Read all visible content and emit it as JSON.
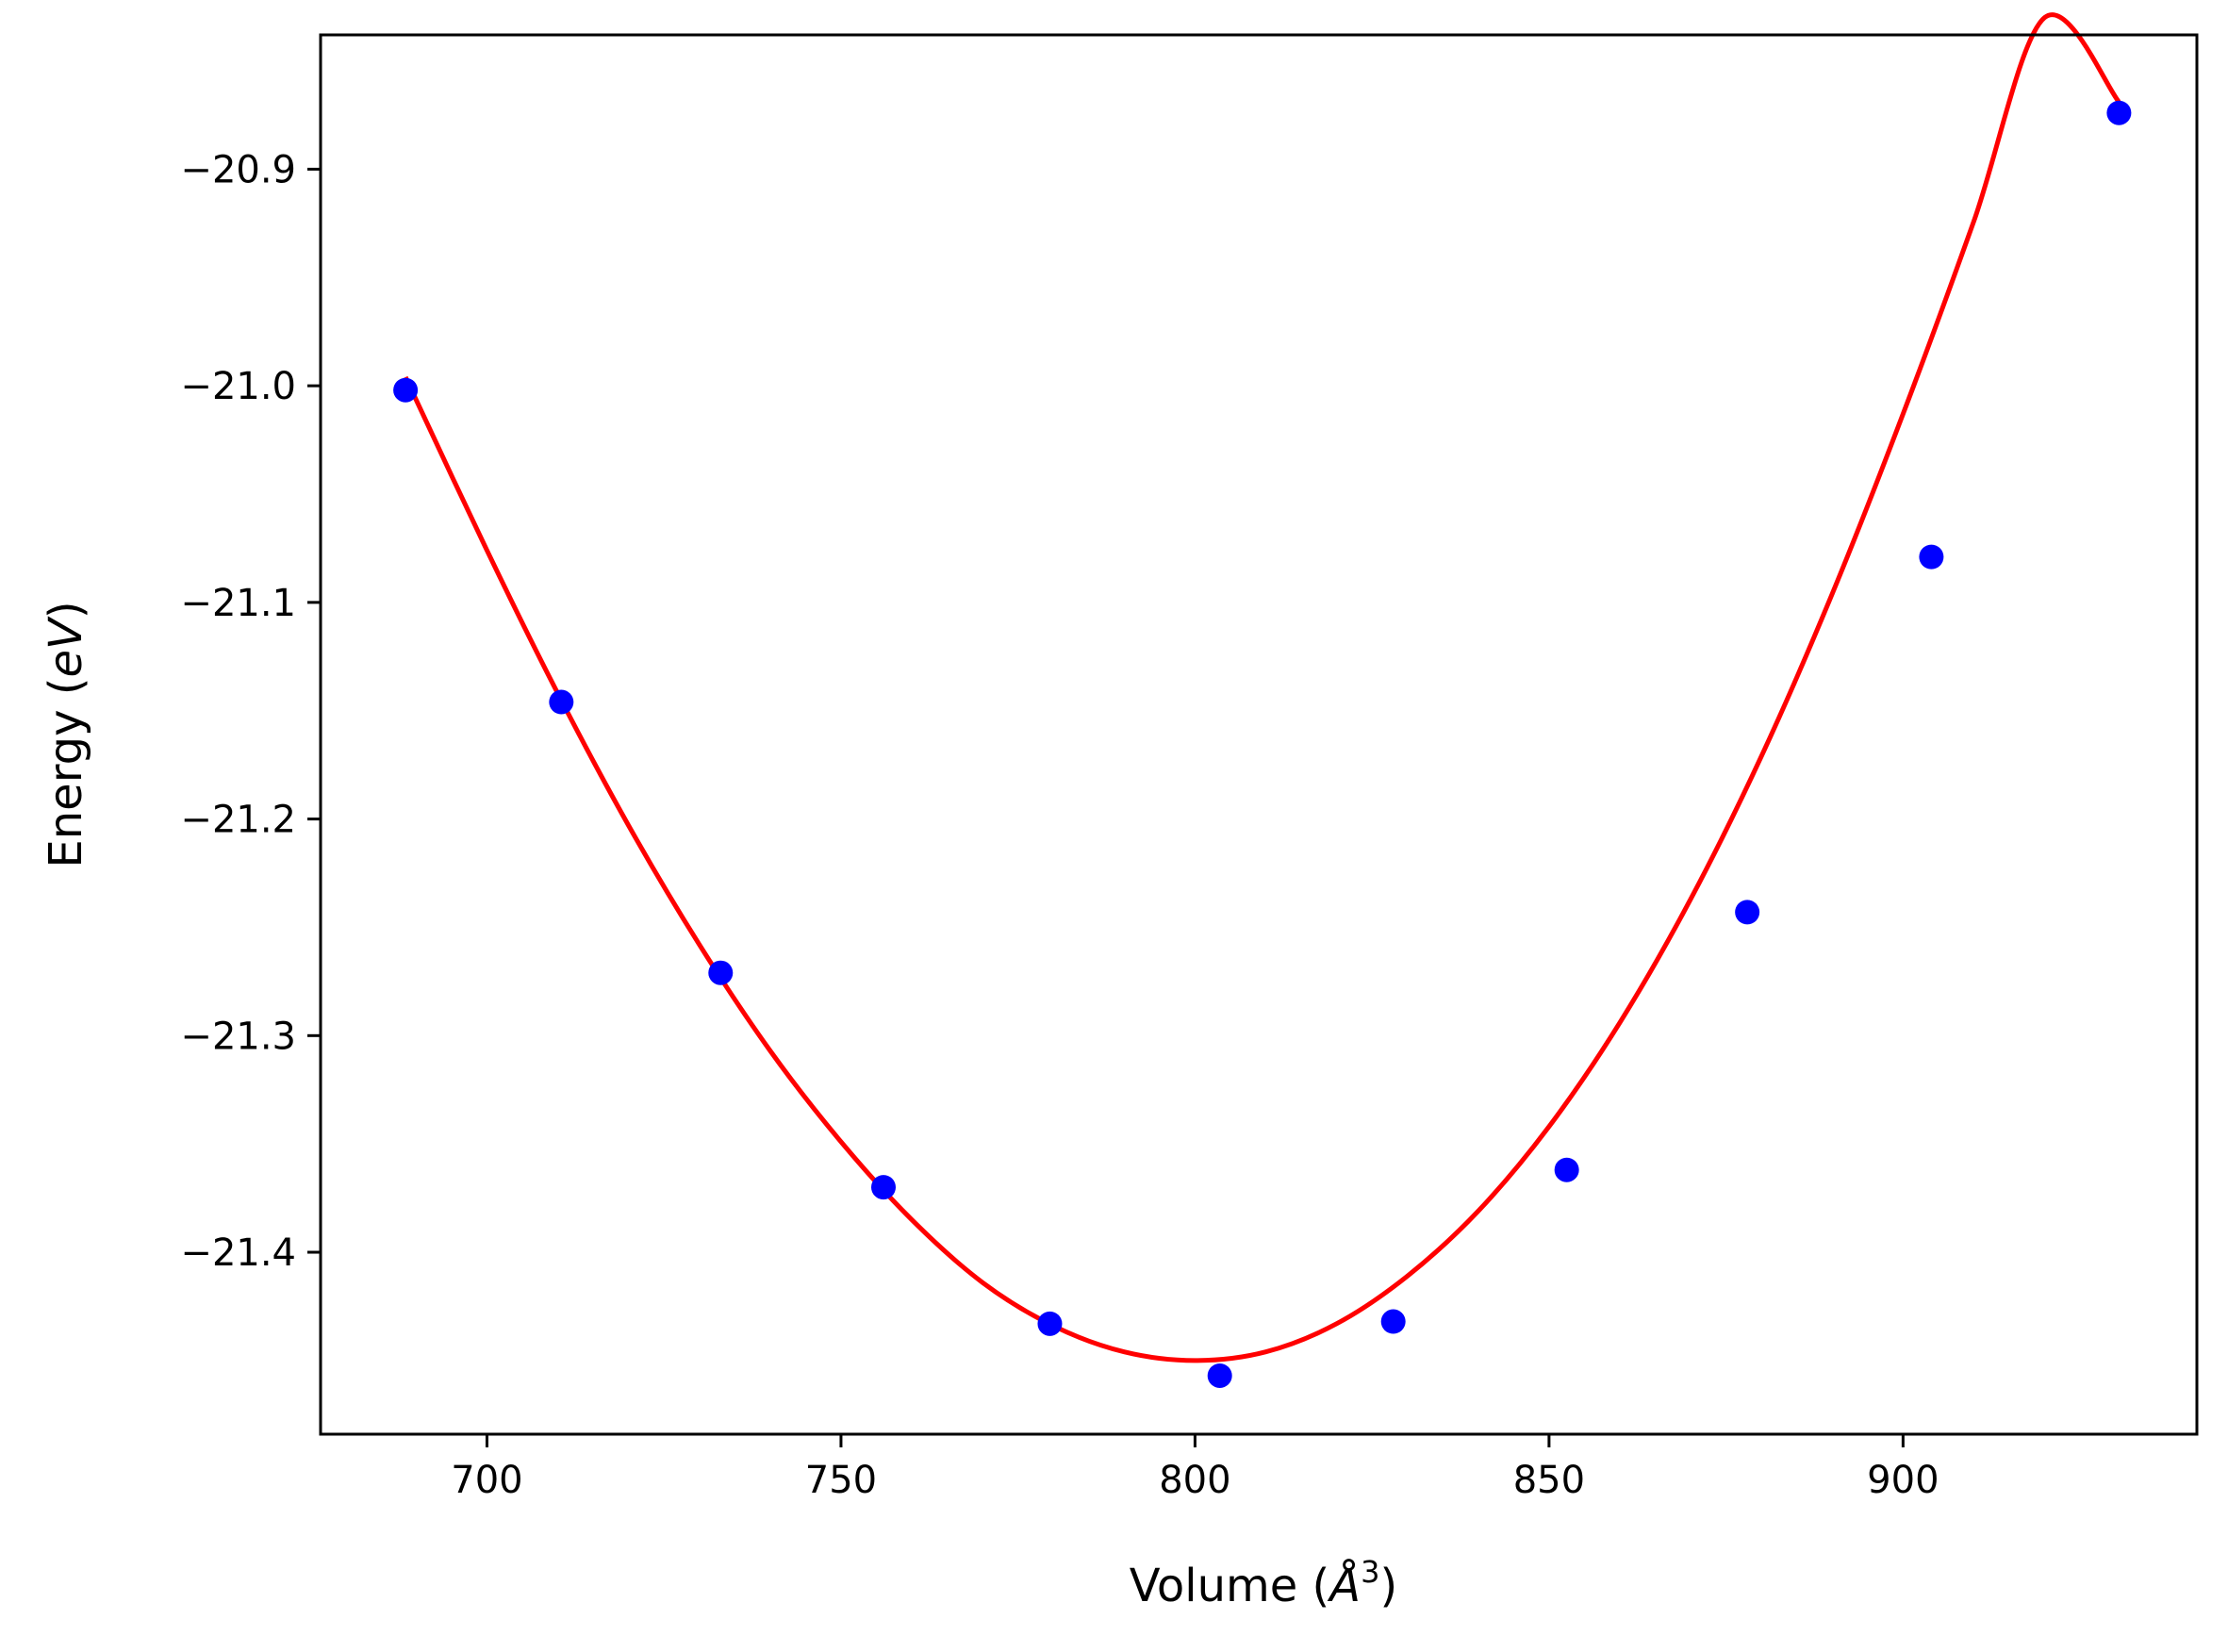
{
  "chart_data": {
    "type": "scatter",
    "title": "",
    "xlabel": "Volume (",
    "xlabel_symbol": "Å",
    "xlabel_sup": "3",
    "xlabel_close": ")",
    "ylabel": "Energy (",
    "ylabel_symbol": "eV",
    "ylabel_close": ")",
    "xlim": [
      676.5,
      941.5
    ],
    "ylim": [
      -21.484,
      -20.838
    ],
    "x_ticks": [
      700,
      750,
      800,
      850,
      900
    ],
    "x_tick_labels": [
      "700",
      "750",
      "800",
      "850",
      "900"
    ],
    "y_ticks": [
      -20.9,
      -21.0,
      -21.1,
      -21.2,
      -21.3,
      -21.4
    ],
    "y_tick_labels": [
      "−20.9",
      "−21.0",
      "−21.1",
      "−21.2",
      "−21.3",
      "−21.4"
    ],
    "grid": false,
    "legend": "none",
    "series": [
      {
        "kind": "points",
        "color": "#0000ff",
        "x": [
          688.5,
          710.5,
          733.0,
          756.0,
          779.5,
          803.5,
          828.0,
          852.5,
          878.0,
          904.0,
          930.5
        ],
        "y": [
          -21.002,
          -21.146,
          -21.271,
          -21.37,
          -21.433,
          -21.457,
          -21.432,
          -21.362,
          -21.243,
          -21.079,
          -20.874
        ]
      },
      {
        "kind": "fit-curve",
        "color": "#ff0000",
        "x": [
          688.5,
          700,
          710,
          720,
          730,
          740,
          750,
          760,
          770,
          780,
          790,
          800,
          810,
          820,
          830,
          840,
          850,
          860,
          870,
          880,
          890,
          900,
          910,
          920,
          930.5
        ],
        "y": [
          -20.996,
          -21.076,
          -21.142,
          -21.203,
          -21.258,
          -21.307,
          -21.349,
          -21.385,
          -21.414,
          -21.434,
          -21.446,
          -21.45,
          -21.446,
          -21.433,
          -21.411,
          -21.381,
          -21.342,
          -21.294,
          -21.237,
          -21.171,
          -21.096,
          -21.013,
          -20.924,
          -20.83,
          -20.869
        ]
      }
    ]
  }
}
